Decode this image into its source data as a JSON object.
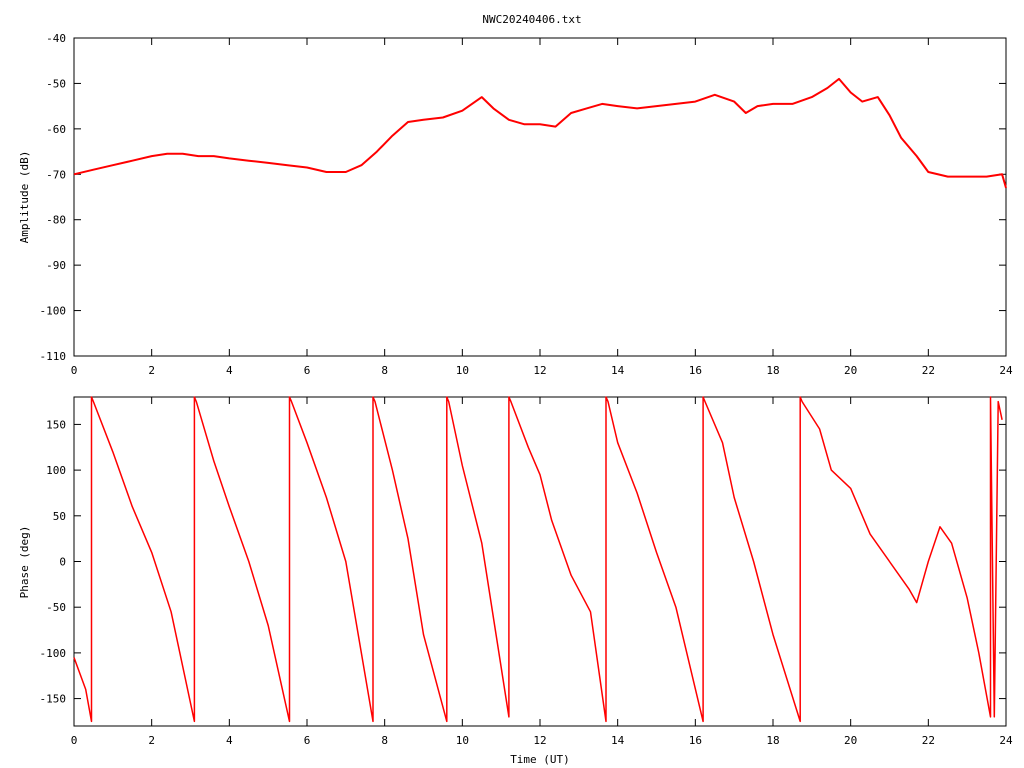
{
  "title": "NWC20240406.txt",
  "colors": {
    "series": "#ff0000",
    "axis": "#000000",
    "background": "#ffffff"
  },
  "chart_data": [
    {
      "type": "line",
      "title": "NWC20240406.txt",
      "xlabel": "",
      "ylabel": "Amplitude (dB)",
      "xlim": [
        0,
        24
      ],
      "ylim": [
        -110,
        -40
      ],
      "x_ticks": [
        "0",
        "2",
        "4",
        "6",
        "8",
        "10",
        "12",
        "14",
        "16",
        "18",
        "20",
        "22",
        "24"
      ],
      "y_ticks": [
        "-40",
        "-50",
        "-60",
        "-70",
        "-80",
        "-90",
        "-100",
        "-110"
      ],
      "grid": false,
      "series": [
        {
          "color": "#ff0000",
          "x": [
            0,
            0.5,
            1,
            1.5,
            2,
            2.4,
            2.8,
            3.2,
            3.6,
            4,
            4.5,
            5,
            5.5,
            6,
            6.5,
            7,
            7.4,
            7.8,
            8.2,
            8.6,
            9,
            9.5,
            10,
            10.5,
            10.8,
            11.2,
            11.6,
            12,
            12.4,
            12.8,
            13.2,
            13.6,
            14,
            14.5,
            15,
            15.5,
            16,
            16.5,
            17,
            17.3,
            17.6,
            18,
            18.5,
            19,
            19.4,
            19.7,
            20,
            20.3,
            20.7,
            21,
            21.3,
            21.7,
            22,
            22.5,
            23,
            23.5,
            23.9,
            24
          ],
          "y": [
            -70,
            -69,
            -68,
            -67,
            -66,
            -65.5,
            -65.5,
            -66,
            -66,
            -66.5,
            -67,
            -67.5,
            -68,
            -68.5,
            -69.5,
            -69.5,
            -68,
            -65,
            -61.5,
            -58.5,
            -58,
            -57.5,
            -56,
            -53,
            -55.5,
            -58,
            -59,
            -59,
            -59.5,
            -56.5,
            -55.5,
            -54.5,
            -55,
            -55.5,
            -55,
            -54.5,
            -54,
            -52.5,
            -54,
            -56.5,
            -55,
            -54.5,
            -54.5,
            -53,
            -51,
            -49,
            -52,
            -54,
            -53,
            -57,
            -62,
            -66,
            -69.5,
            -70.5,
            -70.5,
            -70.5,
            -70,
            -73
          ]
        }
      ]
    },
    {
      "type": "line",
      "title": "",
      "xlabel": "Time (UT)",
      "ylabel": "Phase (deg)",
      "xlim": [
        0,
        24
      ],
      "ylim": [
        -180,
        180
      ],
      "x_ticks": [
        "0",
        "2",
        "4",
        "6",
        "8",
        "10",
        "12",
        "14",
        "16",
        "18",
        "20",
        "22",
        "24"
      ],
      "y_ticks": [
        "150",
        "100",
        "50",
        "0",
        "-50",
        "-100",
        "-150"
      ],
      "grid": false,
      "series": [
        {
          "color": "#ff0000",
          "x": [
            0,
            0.3,
            0.45,
            0.45,
            0.5,
            1,
            1.5,
            2,
            2.5,
            3.1,
            3.1,
            3.15,
            3.6,
            4,
            4.5,
            5,
            5.55,
            5.55,
            5.6,
            6,
            6.5,
            7,
            7.7,
            7.7,
            7.75,
            8.2,
            8.6,
            9,
            9.6,
            9.6,
            9.65,
            10,
            10.5,
            11.2,
            11.2,
            11.25,
            11.7,
            12,
            12.3,
            12.8,
            13.3,
            13.7,
            13.7,
            13.75,
            14,
            14.5,
            15,
            15.5,
            16.2,
            16.2,
            16.25,
            16.7,
            17,
            17.5,
            18,
            18.7,
            18.7,
            18.75,
            19.2,
            19.5,
            20,
            20.5,
            21,
            21.5,
            21.7,
            22,
            22.3,
            22.6,
            23,
            23.3,
            23.6,
            23.6,
            23.7,
            23.8,
            23.9
          ],
          "y": [
            -105,
            -140,
            -175,
            180,
            175,
            120,
            60,
            10,
            -55,
            -175,
            180,
            175,
            110,
            60,
            0,
            -70,
            -175,
            180,
            175,
            130,
            70,
            0,
            -175,
            180,
            175,
            100,
            25,
            -80,
            -175,
            180,
            175,
            105,
            20,
            -170,
            180,
            175,
            125,
            95,
            45,
            -15,
            -55,
            -175,
            180,
            175,
            130,
            75,
            10,
            -50,
            -175,
            180,
            175,
            130,
            70,
            0,
            -80,
            -175,
            180,
            175,
            145,
            100,
            80,
            30,
            0,
            -30,
            -45,
            0,
            38,
            20,
            -40,
            -100,
            -170,
            180,
            -170,
            175,
            155
          ]
        }
      ]
    }
  ]
}
